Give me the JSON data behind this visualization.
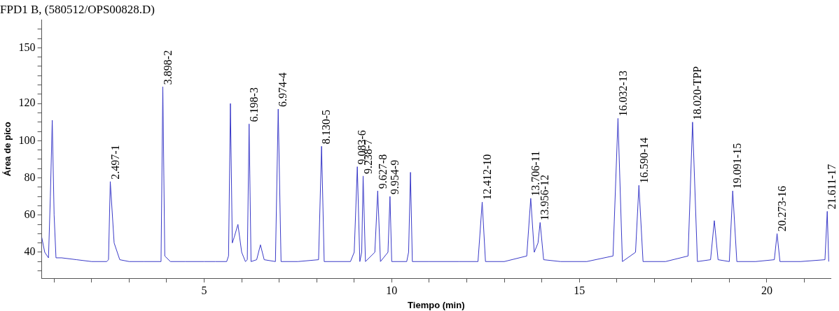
{
  "chart_data": {
    "type": "line",
    "title": "FPD1 B, (580512/OPS00828.D)",
    "xlabel": "Tiempo (min)",
    "ylabel": "Área de pico",
    "x": [
      0.67,
      0.75,
      0.85,
      0.9,
      0.95,
      1.0,
      1.05,
      1.2,
      1.6,
      2.0,
      2.4,
      2.45,
      2.497,
      2.6,
      2.75,
      3.0,
      3.4,
      3.85,
      3.898,
      3.95,
      4.1,
      4.5,
      5.0,
      5.3,
      5.6,
      5.65,
      5.7,
      5.75,
      5.8,
      5.9,
      6.0,
      6.1,
      6.15,
      6.198,
      6.25,
      6.4,
      6.5,
      6.6,
      6.9,
      6.974,
      7.05,
      7.5,
      8.05,
      8.13,
      8.2,
      8.9,
      9.0,
      9.083,
      9.15,
      9.2,
      9.238,
      9.3,
      9.55,
      9.627,
      9.7,
      9.9,
      9.954,
      10.0,
      10.4,
      10.45,
      10.5,
      10.55,
      11.0,
      11.8,
      12.3,
      12.412,
      12.5,
      13.0,
      13.6,
      13.706,
      13.8,
      13.9,
      13.956,
      14.05,
      14.5,
      15.2,
      15.9,
      16.032,
      16.15,
      16.5,
      16.59,
      16.7,
      17.3,
      17.9,
      18.02,
      18.15,
      18.5,
      18.6,
      18.7,
      19.0,
      19.091,
      19.2,
      19.7,
      20.2,
      20.273,
      20.35,
      20.9,
      21.55,
      21.611,
      21.65
    ],
    "series": [
      {
        "color": "#3a3ac8",
        "values": [
          48,
          40,
          37,
          70,
          111,
          60,
          37,
          37,
          36,
          35,
          35,
          36,
          78,
          45,
          36,
          35,
          35,
          35,
          129,
          38,
          35,
          35,
          35,
          35,
          35,
          38,
          120,
          45,
          48,
          55,
          40,
          35,
          36,
          109,
          35,
          36,
          44,
          36,
          35,
          117,
          35,
          35,
          36,
          97,
          35,
          35,
          40,
          86,
          35,
          40,
          81,
          35,
          40,
          73,
          35,
          40,
          70,
          35,
          35,
          40,
          83,
          35,
          35,
          35,
          35,
          67,
          35,
          35,
          38,
          69,
          40,
          45,
          56,
          36,
          35,
          35,
          38,
          112,
          35,
          40,
          76,
          35,
          35,
          38,
          110,
          35,
          36,
          57,
          36,
          35,
          73,
          35,
          35,
          36,
          50,
          35,
          35,
          36,
          62,
          35
        ]
      }
    ],
    "xlim": [
      0.67,
      21.7
    ],
    "ylim": [
      26,
      165
    ],
    "xticks": [
      {
        "value": 1,
        "label": null
      },
      {
        "value": 2,
        "label": null
      },
      {
        "value": 3,
        "label": null
      },
      {
        "value": 4,
        "label": null
      },
      5,
      {
        "value": 6,
        "label": null
      },
      {
        "value": 7,
        "label": null
      },
      {
        "value": 8,
        "label": null
      },
      {
        "value": 9,
        "label": null
      },
      10,
      {
        "value": 11,
        "label": null
      },
      {
        "value": 12,
        "label": null
      },
      {
        "value": 13,
        "label": null
      },
      {
        "value": 14,
        "label": null
      },
      15,
      {
        "value": 16,
        "label": null
      },
      {
        "value": 17,
        "label": null
      },
      {
        "value": 18,
        "label": null
      },
      {
        "value": 19,
        "label": null
      },
      20,
      {
        "value": 21,
        "label": null
      }
    ],
    "yticks": [
      {
        "value": 30,
        "label": null
      },
      {
        "value": 35,
        "label": null
      },
      40,
      {
        "value": 45,
        "label": null
      },
      {
        "value": 50,
        "label": null
      },
      {
        "value": 55,
        "label": null
      },
      60,
      {
        "value": 65,
        "label": null
      },
      {
        "value": 70,
        "label": null
      },
      {
        "value": 75,
        "label": null
      },
      80,
      {
        "value": 85,
        "label": null
      },
      {
        "value": 90,
        "label": null
      },
      {
        "value": 95,
        "label": null
      },
      100,
      {
        "value": 105,
        "label": null
      },
      {
        "value": 110,
        "label": null
      },
      {
        "value": 115,
        "label": null
      },
      120,
      {
        "value": 125,
        "label": null
      },
      {
        "value": 130,
        "label": null
      },
      {
        "value": 135,
        "label": null
      },
      {
        "value": 140,
        "label": null
      },
      {
        "value": 145,
        "label": null
      },
      150,
      {
        "value": 155,
        "label": null
      },
      {
        "value": 160,
        "label": null
      }
    ],
    "annotations": [
      {
        "text": "2.497-1",
        "x": 2.497,
        "y": 78
      },
      {
        "text": "3.898-2",
        "x": 3.898,
        "y": 129
      },
      {
        "text": "6.198-3",
        "x": 6.198,
        "y": 109
      },
      {
        "text": "6.974-4",
        "x": 6.974,
        "y": 117
      },
      {
        "text": "8.130-5",
        "x": 8.13,
        "y": 97
      },
      {
        "text": "9.083-6",
        "x": 9.083,
        "y": 86
      },
      {
        "text": "9.238-7",
        "x": 9.238,
        "y": 81
      },
      {
        "text": "9.627-8",
        "x": 9.627,
        "y": 73
      },
      {
        "text": "9.954-9",
        "x": 9.954,
        "y": 70
      },
      {
        "text": "12.412-10",
        "x": 12.412,
        "y": 67
      },
      {
        "text": "13.706-11",
        "x": 13.706,
        "y": 69
      },
      {
        "text": "13.956-12",
        "x": 13.956,
        "y": 56
      },
      {
        "text": "16.032-13",
        "x": 16.032,
        "y": 112
      },
      {
        "text": "16.590-14",
        "x": 16.59,
        "y": 76
      },
      {
        "text": "18.020-TPP",
        "x": 18.02,
        "y": 110
      },
      {
        "text": "19.091-15",
        "x": 19.091,
        "y": 73
      },
      {
        "text": "20.273-16",
        "x": 20.273,
        "y": 50
      },
      {
        "text": "21.611-17",
        "x": 21.611,
        "y": 62
      }
    ],
    "grid": false,
    "legend": false,
    "marker": "none",
    "line_style": "solid"
  }
}
